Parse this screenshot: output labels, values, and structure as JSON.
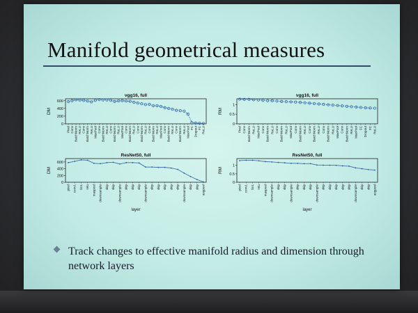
{
  "slide": {
    "title": "Manifold geometrical measures",
    "bullet": "Track changes to effective manifold radius and dimension through network layers"
  },
  "chart_data": [
    {
      "type": "line",
      "title": "vgg16, full",
      "ylabel": "DM",
      "ylim": [
        0,
        650
      ],
      "yticks": [
        0,
        200,
        400,
        600
      ],
      "categories": [
        "Pixel",
        "Conv",
        "BatchNorm",
        "ReLU",
        "Conv",
        "BatchNorm",
        "ReLU",
        "MaxPool",
        "Conv",
        "BatchNorm",
        "ReLU",
        "Conv",
        "BatchNorm",
        "ReLU",
        "MaxPool",
        "Conv",
        "BatchNorm",
        "ReLU",
        "Conv",
        "BatchNorm",
        "ReLU",
        "Conv",
        "BatchNorm",
        "ReLU",
        "MaxPool",
        "Conv",
        "BatchNorm",
        "ReLU",
        "Conv",
        "BatchNorm",
        "ReLU",
        "MaxPool",
        "FC",
        "Dropout",
        "FC",
        "ReLU"
      ],
      "series": [
        {
          "values": [
            575,
            600,
            625,
            615,
            610,
            590,
            570,
            610,
            630,
            620,
            620,
            610,
            580,
            595,
            600,
            590,
            585,
            560,
            540,
            520,
            500,
            505,
            470,
            470,
            450,
            420,
            400,
            380,
            350,
            340,
            330,
            250,
            30,
            20,
            15,
            10
          ]
        }
      ]
    },
    {
      "type": "line",
      "title": "vgg16, full",
      "ylabel": "RM",
      "ylim": [
        0,
        1.3
      ],
      "yticks": [
        0,
        0.5,
        1
      ],
      "categories": [
        "Pixel",
        "Conv",
        "BatchNorm",
        "ReLU",
        "MaxPool",
        "Conv",
        "BatchNorm",
        "ReLU",
        "Conv",
        "BatchNorm",
        "ReLU",
        "MaxPool",
        "Conv",
        "BatchNorm",
        "ReLU",
        "Conv",
        "BatchNorm",
        "ReLU",
        "Conv",
        "BatchNorm",
        "ReLU",
        "MaxPool",
        "Conv",
        "BatchNorm",
        "ReLU",
        "MaxPool",
        "FC",
        "Dropout",
        "FC",
        "ReLU"
      ],
      "series": [
        {
          "values": [
            1.28,
            1.27,
            1.27,
            1.25,
            1.24,
            1.22,
            1.2,
            1.2,
            1.18,
            1.16,
            1.15,
            1.14,
            1.13,
            1.11,
            1.09,
            1.07,
            1.05,
            1.03,
            1.01,
            0.99,
            0.97,
            0.95,
            0.93,
            0.91,
            0.89,
            0.87,
            0.85,
            0.83,
            0.82,
            0.81
          ]
        }
      ]
    },
    {
      "type": "line",
      "title": "ResNet50, full",
      "ylabel": "DM",
      "xlabel": "layer",
      "ylim": [
        0,
        700
      ],
      "yticks": [
        0,
        200,
        400,
        600
      ],
      "categories": [
        "pixel",
        "conv1",
        "bn1",
        "relu",
        "maxpool",
        "downsample",
        "skip",
        "skip",
        "downsample",
        "skip",
        "skip",
        "skip",
        "downsample",
        "skip",
        "skip",
        "skip",
        "skip",
        "skip",
        "downsample",
        "skip",
        "skip",
        "avgpool"
      ],
      "series": [
        {
          "values": [
            580,
            620,
            660,
            650,
            560,
            550,
            580,
            590,
            540,
            580,
            580,
            570,
            450,
            450,
            440,
            440,
            420,
            380,
            270,
            170,
            80,
            10
          ]
        }
      ]
    },
    {
      "type": "line",
      "title": "ResNet50, full",
      "ylabel": "RM",
      "xlabel": "layer",
      "ylim": [
        0,
        1.4
      ],
      "yticks": [
        0,
        0.5,
        1
      ],
      "categories": [
        "pixel",
        "conv1",
        "bn1",
        "relu",
        "maxpool",
        "downsample",
        "skip",
        "skip",
        "downsample",
        "skip",
        "skip",
        "skip",
        "downsample",
        "skip",
        "skip",
        "skip",
        "skip",
        "skip",
        "downsample",
        "skip",
        "skip",
        "avgpool"
      ],
      "series": [
        {
          "values": [
            1.28,
            1.3,
            1.3,
            1.27,
            1.22,
            1.2,
            1.17,
            1.15,
            1.12,
            1.12,
            1.1,
            1.1,
            1.02,
            1.01,
            1.01,
            1.0,
            0.97,
            0.95,
            0.85,
            0.8,
            0.75,
            0.72
          ]
        }
      ]
    }
  ]
}
